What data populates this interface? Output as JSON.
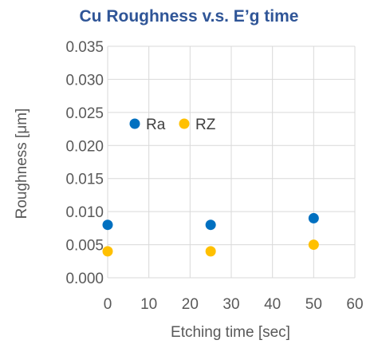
{
  "chart_data": {
    "type": "scatter",
    "title": "Cu Roughness v.s. E’g time",
    "xlabel": "Etching time [sec]",
    "ylabel": "Roughness [μm]",
    "xlim": [
      0,
      60
    ],
    "ylim": [
      0,
      0.035
    ],
    "x_ticks": [
      "0",
      "10",
      "20",
      "30",
      "40",
      "50",
      "60"
    ],
    "y_ticks": [
      "0.000",
      "0.005",
      "0.010",
      "0.015",
      "0.020",
      "0.025",
      "0.030",
      "0.035"
    ],
    "grid": true,
    "legend_position": "inside-upper-left",
    "series": [
      {
        "name": "Ra",
        "color": "#0070c0",
        "points": [
          {
            "x": 0,
            "y": 0.008
          },
          {
            "x": 25,
            "y": 0.008
          },
          {
            "x": 50,
            "y": 0.009
          }
        ]
      },
      {
        "name": "RZ",
        "color": "#ffc000",
        "points": [
          {
            "x": 0,
            "y": 0.004
          },
          {
            "x": 25,
            "y": 0.004
          },
          {
            "x": 50,
            "y": 0.005
          }
        ]
      }
    ]
  }
}
